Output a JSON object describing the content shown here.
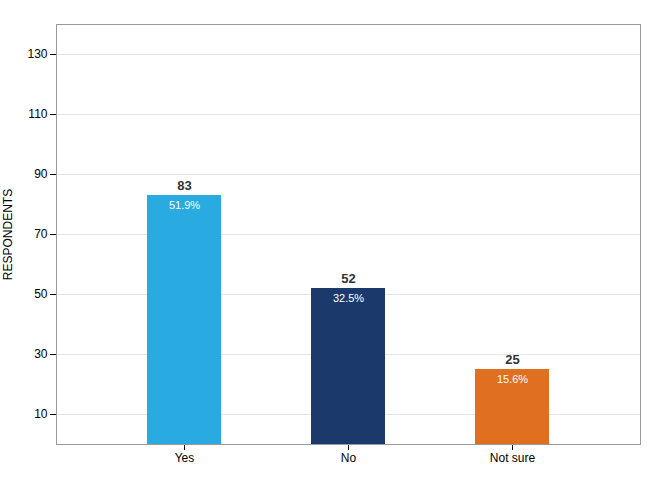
{
  "chart_data": {
    "type": "bar",
    "categories": [
      "Yes",
      "No",
      "Not sure"
    ],
    "values": [
      83,
      52,
      25
    ],
    "colors": [
      "#29abe2",
      "#1b3a6b",
      "#e07020"
    ],
    "percentages": [
      {
        "value": 51.9,
        "label": "51.9%"
      },
      {
        "value": 32.5,
        "label": "32.5%"
      },
      {
        "value": 15.6,
        "label": "15.6%"
      }
    ],
    "ylabel": "RESPONDENTS",
    "ylim": [
      0,
      140
    ],
    "yticks": [
      10,
      30,
      50,
      70,
      90,
      110,
      130
    ],
    "grid": true,
    "data_labels": true
  }
}
